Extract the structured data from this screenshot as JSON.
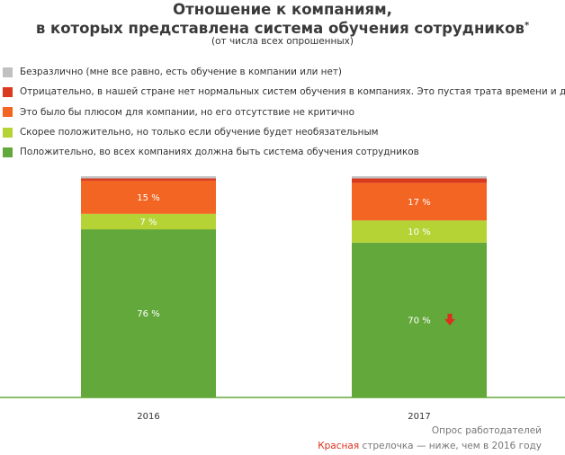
{
  "header": {
    "title_line1": "Отношение к компаниям,",
    "title_line2": "в которых представлена система обучения сотрудников",
    "title_mark": "*",
    "subtitle": "(от числа всех опрошенных)"
  },
  "legend": [
    {
      "label": "Безразлично (мне все равно, есть обучение в компании или нет)",
      "color": "#c0c0c0"
    },
    {
      "label": "Отрицательно, в нашей стране нет нормальных систем обучения в компаниях. Это пустая трата времени и денег",
      "color": "#d9391f"
    },
    {
      "label": "Это было бы плюсом для компании, но его отсутствие не критично",
      "color": "#f26522"
    },
    {
      "label": "Скорее положительно, но только если обучение будет необязательным",
      "color": "#b5d334"
    },
    {
      "label": "Положительно, во всех компаниях должна быть система обучения сотрудников",
      "color": "#63a83b"
    }
  ],
  "chart_data": {
    "type": "bar",
    "stacked": true,
    "title": "Отношение к компаниям, в которых представлена система обучения сотрудников*",
    "subtitle": "(от числа всех опрошенных)",
    "categories": [
      "2016",
      "2017"
    ],
    "ylim": [
      0,
      100
    ],
    "series": [
      {
        "name": "Положительно, во всех компаниях должна быть система обучения сотрудников",
        "color": "#63a83b",
        "values": [
          76,
          70
        ],
        "labels": [
          "76 %",
          "70 %"
        ]
      },
      {
        "name": "Скорее положительно, но только если обучение будет необязательным",
        "color": "#b5d334",
        "values": [
          7,
          10
        ],
        "labels": [
          "7 %",
          "10 %"
        ]
      },
      {
        "name": "Это было бы плюсом для компании, но его отсутствие не критично",
        "color": "#f26522",
        "values": [
          15,
          17
        ],
        "labels": [
          "15 %",
          "17 %"
        ]
      },
      {
        "name": "Отрицательно, в нашей стране нет нормальных систем обучения в компаниях. Это пустая трата времени и денег",
        "color": "#d9391f",
        "values": [
          1,
          2
        ],
        "labels": [
          "",
          ""
        ]
      },
      {
        "name": "Безразлично (мне все равно, есть обучение в компании или нет)",
        "color": "#c0c0c0",
        "values": [
          1,
          1
        ],
        "labels": [
          "",
          ""
        ]
      }
    ],
    "annotations": [
      {
        "category": "2017",
        "series": "Положительно, во всех компаниях должна быть система обучения сотрудников",
        "marker": "down-arrow",
        "color": "#d9311d"
      }
    ]
  },
  "footer": {
    "source": "Опрос работодателей",
    "note_red": "Красная",
    "note_rest": "стрелочка — ниже, чем в 2016 году"
  }
}
